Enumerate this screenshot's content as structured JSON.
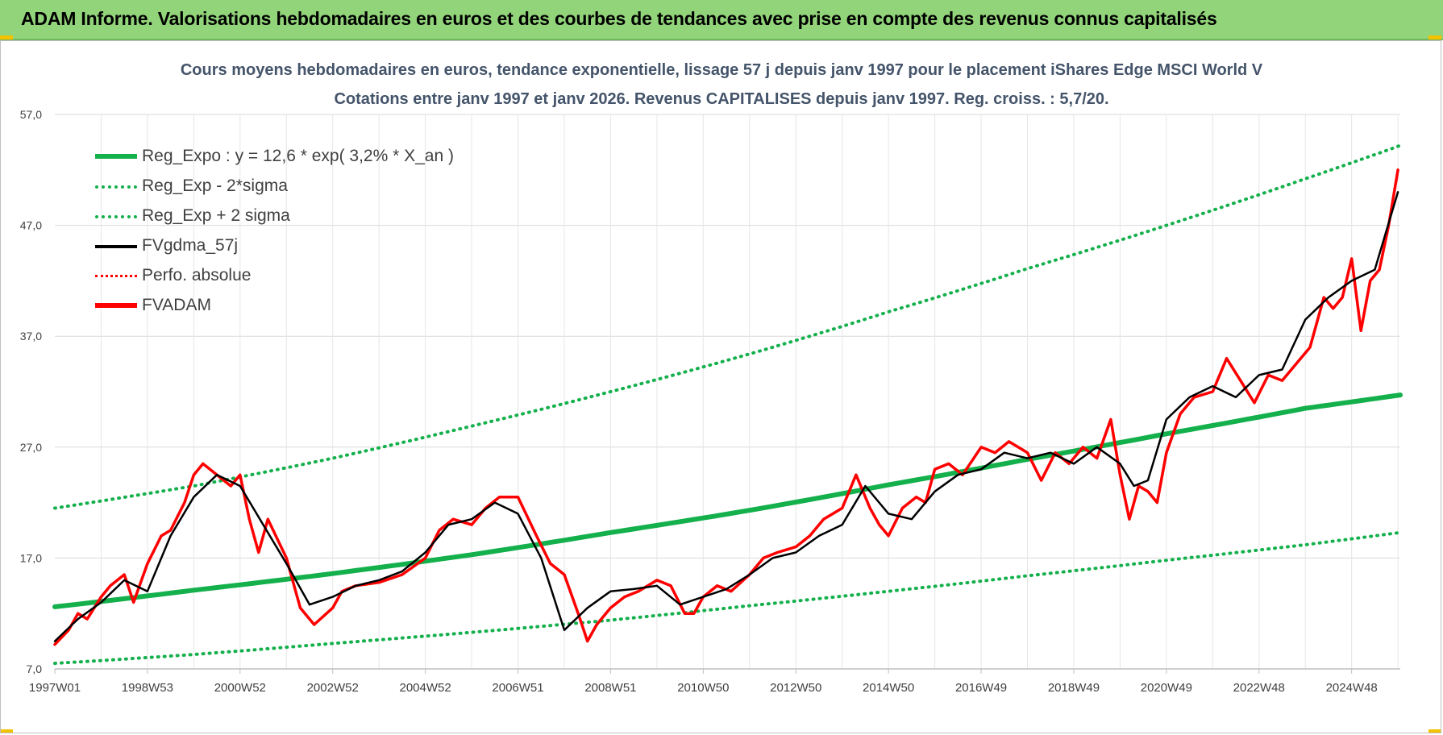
{
  "banner": {
    "title": "ADAM Informe. Valorisations hebdomadaires en euros et des courbes de tendances avec prise en compte des revenus connus capitalisés"
  },
  "colors": {
    "banner_bg": "#92d47a",
    "regression": "#13b04c",
    "smoothed": "#000000",
    "price": "#ff0000",
    "title_text": "#44546a"
  },
  "chart_data": {
    "type": "line",
    "title": "Cours moyens hebdomadaires en euros, tendance exponentielle, lissage 57 j depuis janv 1997 pour le placement iShares Edge MSCI World V",
    "subtitle": "Cotations entre janv 1997 et janv 2026. Revenus CAPITALISES depuis janv 1997. Reg. croiss. : 5,7/20.",
    "xlabel": "",
    "ylabel": "",
    "ylim": [
      7.0,
      57.0
    ],
    "xlim": [
      1997.0,
      2026.05
    ],
    "grid": true,
    "legend_position": "top-left",
    "y_ticks": [
      "7,0",
      "17,0",
      "27,0",
      "37,0",
      "47,0",
      "57,0"
    ],
    "y_tick_values": [
      7,
      17,
      27,
      37,
      47,
      57
    ],
    "x_ticks": [
      "1997W01",
      "1998W53",
      "2000W52",
      "2002W52",
      "2004W52",
      "2006W51",
      "2008W51",
      "2010W50",
      "2012W50",
      "2014W50",
      "2016W49",
      "2018W49",
      "2020W49",
      "2022W48",
      "2024W48"
    ],
    "x_tick_years": [
      1997.0,
      1999.0,
      2001.0,
      2003.0,
      2005.0,
      2007.0,
      2009.0,
      2011.0,
      2013.0,
      2015.0,
      2017.0,
      2019.0,
      2021.0,
      2023.0,
      2025.0
    ],
    "series": [
      {
        "name": "Reg_Expo : y = 12,6 * exp( 3,2% *  X_an )",
        "style": "solid-thick",
        "color": "#13b04c",
        "x": [
          1997.0,
          2000.0,
          2003.0,
          2006.0,
          2009.0,
          2012.0,
          2015.0,
          2018.0,
          2021.0,
          2024.0,
          2026.05
        ],
        "y": [
          12.6,
          14.1,
          15.6,
          17.3,
          19.3,
          21.3,
          23.6,
          25.9,
          28.2,
          30.5,
          31.7
        ]
      },
      {
        "name": "Reg_Exp - 2*sigma",
        "style": "dotted",
        "color": "#13b04c",
        "x": [
          1997.0,
          2000.0,
          2003.0,
          2006.0,
          2009.0,
          2012.0,
          2015.0,
          2018.0,
          2021.0,
          2024.0,
          2026.05
        ],
        "y": [
          7.5,
          8.3,
          9.3,
          10.3,
          11.4,
          12.7,
          14.0,
          15.4,
          16.8,
          18.2,
          19.3
        ]
      },
      {
        "name": "Reg_Exp + 2 sigma",
        "style": "dotted",
        "color": "#13b04c",
        "x": [
          1997.0,
          2000.0,
          2003.0,
          2006.0,
          2009.0,
          2012.0,
          2015.0,
          2018.0,
          2021.0,
          2024.0,
          2026.05
        ],
        "y": [
          21.5,
          23.5,
          26.0,
          28.9,
          32.0,
          35.4,
          39.2,
          43.1,
          47.0,
          51.2,
          54.2
        ]
      },
      {
        "name": "FVgdma_57j",
        "style": "solid",
        "color": "#000000",
        "x": [
          1997.0,
          1997.5,
          1998.0,
          1998.5,
          1999.0,
          1999.5,
          2000.0,
          2000.5,
          2001.0,
          2001.5,
          2002.0,
          2002.5,
          2003.0,
          2003.5,
          2004.0,
          2004.5,
          2005.0,
          2005.5,
          2006.0,
          2006.5,
          2007.0,
          2007.5,
          2008.0,
          2008.5,
          2009.0,
          2009.5,
          2010.0,
          2010.5,
          2011.0,
          2011.5,
          2012.0,
          2012.5,
          2013.0,
          2013.5,
          2014.0,
          2014.5,
          2015.0,
          2015.5,
          2016.0,
          2016.5,
          2017.0,
          2017.5,
          2018.0,
          2018.5,
          2019.0,
          2019.5,
          2020.0,
          2020.3,
          2020.6,
          2021.0,
          2021.5,
          2022.0,
          2022.5,
          2023.0,
          2023.5,
          2024.0,
          2024.5,
          2025.0,
          2025.5,
          2026.0
        ],
        "y": [
          9.5,
          11.5,
          13.0,
          15.0,
          14.0,
          19.0,
          22.5,
          24.5,
          23.5,
          20.0,
          16.5,
          12.8,
          13.5,
          14.5,
          15.0,
          15.8,
          17.5,
          20.0,
          20.5,
          22.0,
          21.0,
          17.0,
          10.5,
          12.5,
          14.0,
          14.2,
          14.5,
          12.8,
          13.5,
          14.2,
          15.5,
          17.0,
          17.5,
          19.0,
          20.0,
          23.5,
          21.0,
          20.5,
          23.0,
          24.5,
          25.0,
          26.5,
          26.0,
          26.5,
          25.5,
          27.0,
          25.5,
          23.5,
          24.0,
          29.5,
          31.5,
          32.5,
          31.5,
          33.5,
          34.0,
          38.5,
          40.5,
          42.0,
          43.0,
          50.0
        ]
      },
      {
        "name": "Perfo. absolue",
        "style": "dotted",
        "color": "#ff0000",
        "x": [],
        "y": []
      },
      {
        "name": "FVADAM",
        "style": "solid-thick",
        "color": "#ff0000",
        "x": [
          1997.0,
          1997.3,
          1997.5,
          1997.7,
          1998.0,
          1998.2,
          1998.5,
          1998.7,
          1999.0,
          1999.3,
          1999.5,
          1999.8,
          2000.0,
          2000.2,
          2000.5,
          2000.8,
          2001.0,
          2001.2,
          2001.4,
          2001.6,
          2002.0,
          2002.3,
          2002.6,
          2003.0,
          2003.2,
          2003.5,
          2004.0,
          2004.5,
          2005.0,
          2005.3,
          2005.6,
          2006.0,
          2006.3,
          2006.6,
          2007.0,
          2007.4,
          2007.7,
          2008.0,
          2008.3,
          2008.5,
          2008.7,
          2009.0,
          2009.3,
          2009.6,
          2010.0,
          2010.3,
          2010.6,
          2010.8,
          2011.0,
          2011.3,
          2011.6,
          2012.0,
          2012.3,
          2012.6,
          2013.0,
          2013.3,
          2013.6,
          2014.0,
          2014.3,
          2014.6,
          2014.8,
          2015.0,
          2015.3,
          2015.6,
          2015.8,
          2016.0,
          2016.3,
          2016.6,
          2017.0,
          2017.3,
          2017.6,
          2018.0,
          2018.3,
          2018.6,
          2018.9,
          2019.2,
          2019.5,
          2019.8,
          2020.0,
          2020.2,
          2020.4,
          2020.6,
          2020.8,
          2021.0,
          2021.3,
          2021.6,
          2022.0,
          2022.3,
          2022.6,
          2022.9,
          2023.2,
          2023.5,
          2023.8,
          2024.1,
          2024.4,
          2024.6,
          2024.8,
          2025.0,
          2025.2,
          2025.4,
          2025.6,
          2025.8,
          2026.0
        ],
        "y": [
          9.2,
          10.5,
          12.0,
          11.5,
          13.5,
          14.5,
          15.5,
          13.0,
          16.5,
          19.0,
          19.5,
          22.0,
          24.5,
          25.5,
          24.5,
          23.5,
          24.5,
          20.5,
          17.5,
          20.5,
          17.0,
          12.5,
          11.0,
          12.5,
          14.0,
          14.5,
          14.8,
          15.5,
          17.0,
          19.5,
          20.5,
          20.0,
          21.5,
          22.5,
          22.5,
          19.0,
          16.5,
          15.5,
          12.0,
          9.5,
          11.0,
          12.5,
          13.5,
          14.0,
          15.0,
          14.5,
          12.0,
          12.0,
          13.5,
          14.5,
          14.0,
          15.5,
          17.0,
          17.5,
          18.0,
          19.0,
          20.5,
          21.5,
          24.5,
          21.5,
          20.0,
          19.0,
          21.5,
          22.5,
          22.0,
          25.0,
          25.5,
          24.5,
          27.0,
          26.5,
          27.5,
          26.5,
          24.0,
          26.5,
          25.5,
          27.0,
          26.0,
          29.5,
          24.5,
          20.5,
          23.5,
          23.0,
          22.0,
          26.5,
          30.0,
          31.5,
          32.0,
          35.0,
          33.0,
          31.0,
          33.5,
          33.0,
          34.5,
          36.0,
          40.5,
          39.5,
          40.5,
          44.0,
          37.5,
          42.0,
          43.0,
          47.0,
          52.0
        ]
      }
    ]
  }
}
